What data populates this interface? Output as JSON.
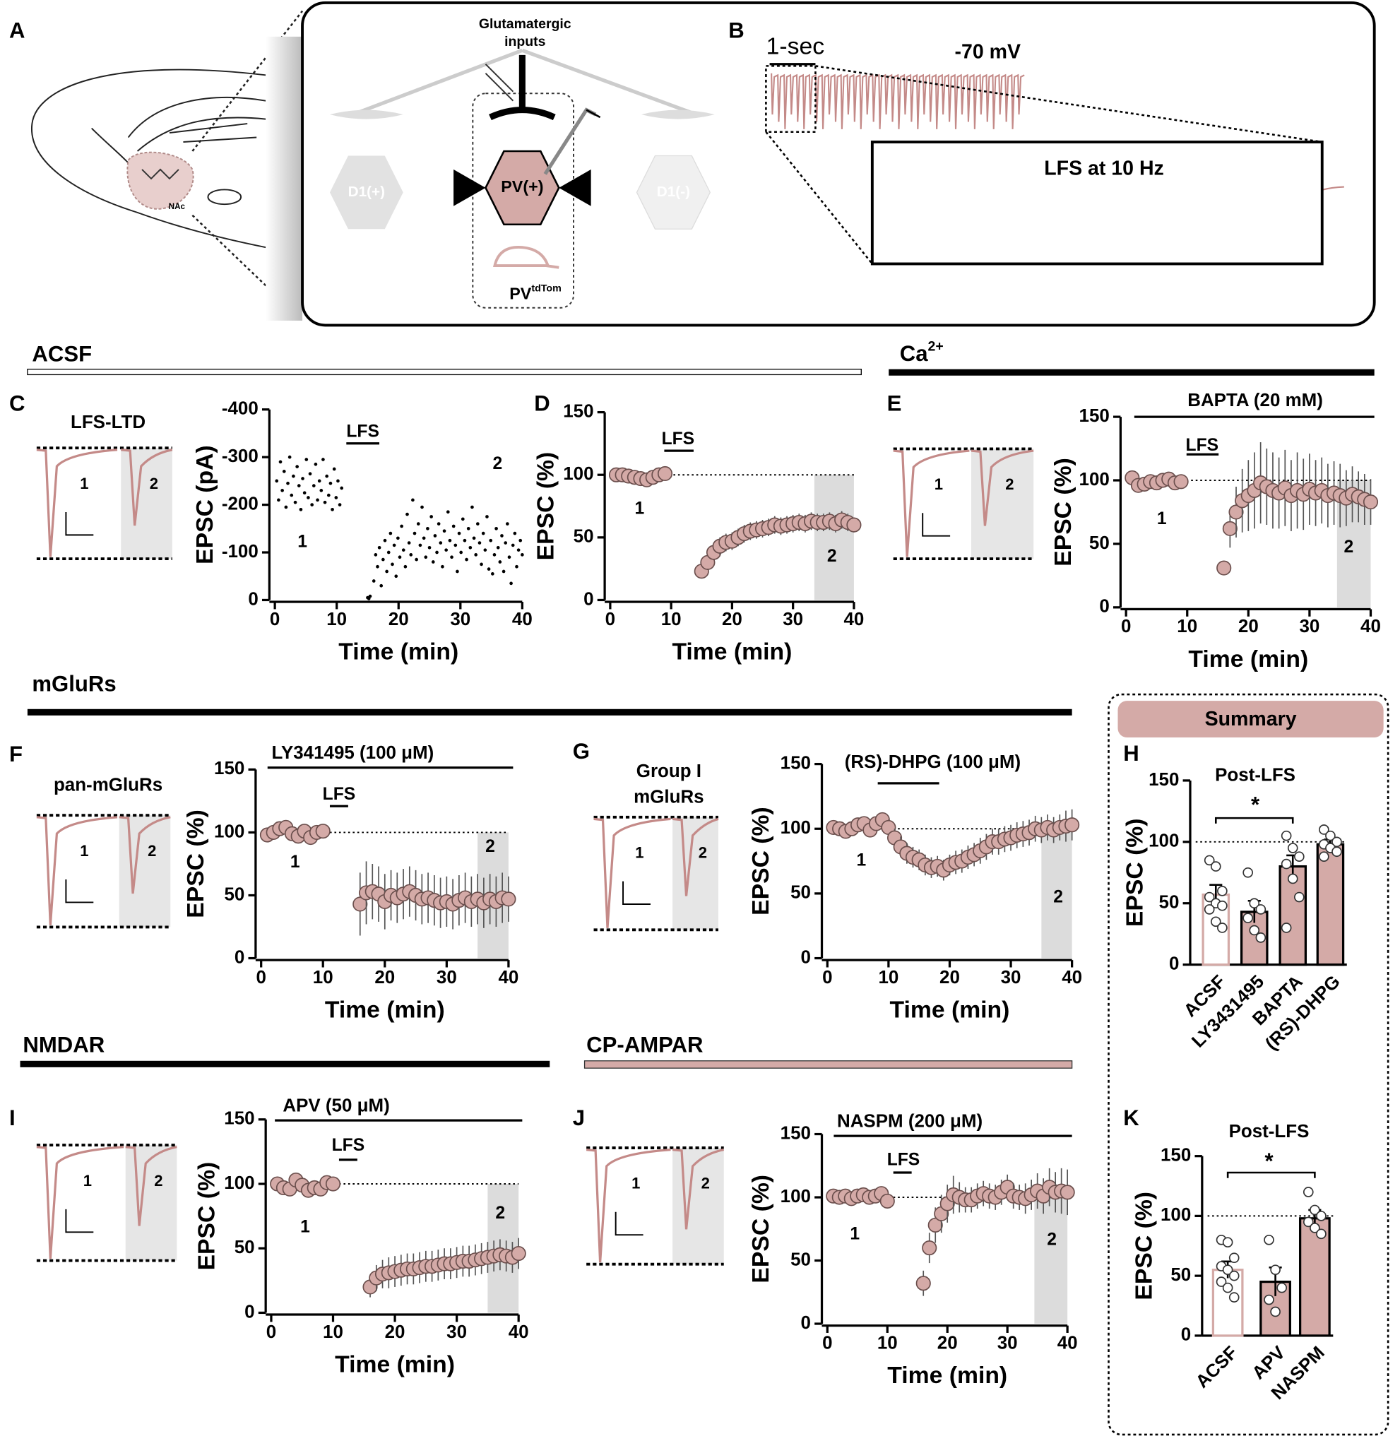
{
  "figure": {
    "panel_labels": [
      "A",
      "B",
      "C",
      "D",
      "E",
      "F",
      "G",
      "H",
      "I",
      "J",
      "K"
    ],
    "sections": [
      {
        "label": "ACSF"
      },
      {
        "label": "Ca",
        "superscript": "2+"
      },
      {
        "label": "mGluRs"
      },
      {
        "label": "NMDAR"
      },
      {
        "label": "CP-AMPAR"
      }
    ],
    "diagram": {
      "inputs": [
        "Glutamatergic",
        "inputs"
      ],
      "cells": [
        "D1(+)",
        "PV(+)",
        "D1(-)"
      ],
      "mouse": "PV",
      "mouse_sup": "tdTom",
      "region": "NAc",
      "time_scale": "1-sec",
      "holding": "-70 mV",
      "inset": "LFS at 10 Hz"
    },
    "trace_labels": [
      "LFS-LTD",
      "pan-mGluRs",
      "Group I",
      "mGluRs"
    ],
    "trace_numbers": [
      "1",
      "2"
    ],
    "summary": "Summary"
  },
  "chart_data": [
    {
      "type": "scatter",
      "xlabel": "Time (min)",
      "ylabel": "EPSC (pA)",
      "color": "#000000",
      "x": [
        0.3,
        0.6,
        0.9,
        1.2,
        1.5,
        1.8,
        2.1,
        2.4,
        2.7,
        3.0,
        3.3,
        3.6,
        3.9,
        4.2,
        4.5,
        4.8,
        5.1,
        5.4,
        5.7,
        6.0,
        6.3,
        6.6,
        6.9,
        7.2,
        7.5,
        7.8,
        8.1,
        8.4,
        8.7,
        9.0,
        9.3,
        9.6,
        9.9,
        10.2,
        10.5,
        10.8,
        15.0,
        15.2,
        15.4,
        16.0,
        16.3,
        16.6,
        16.9,
        17.2,
        17.5,
        17.8,
        18.1,
        18.4,
        18.7,
        19.0,
        19.3,
        19.6,
        19.9,
        20.2,
        20.5,
        20.8,
        21.1,
        21.4,
        21.7,
        22.0,
        22.3,
        22.6,
        22.9,
        23.2,
        23.5,
        23.8,
        24.1,
        24.4,
        24.7,
        25.0,
        25.3,
        25.6,
        25.9,
        26.2,
        26.5,
        26.8,
        27.1,
        27.4,
        27.7,
        28.0,
        28.3,
        28.6,
        28.9,
        29.2,
        29.5,
        29.8,
        30.1,
        30.4,
        30.7,
        31.0,
        31.3,
        31.6,
        31.9,
        32.2,
        32.5,
        32.8,
        33.1,
        33.4,
        33.7,
        34.0,
        34.3,
        34.6,
        34.9,
        35.2,
        35.5,
        35.8,
        36.1,
        36.4,
        36.7,
        37.0,
        37.3,
        37.6,
        37.9,
        38.2,
        38.5,
        38.8,
        39.1,
        39.4,
        39.7,
        40.0
      ],
      "values": [
        -250,
        -210,
        -290,
        -230,
        -270,
        -195,
        -245,
        -300,
        -220,
        -260,
        -205,
        -280,
        -240,
        -190,
        -255,
        -225,
        -295,
        -215,
        -265,
        -200,
        -240,
        -285,
        -210,
        -250,
        -230,
        -295,
        -205,
        -260,
        -220,
        -245,
        -190,
        -275,
        -215,
        -250,
        -200,
        -235,
        -5,
        -3,
        -8,
        -40,
        -95,
        -70,
        -110,
        -30,
        -85,
        -125,
        -60,
        -100,
        -140,
        -75,
        -115,
        -50,
        -130,
        -90,
        -155,
        -105,
        -70,
        -180,
        -120,
        -95,
        -210,
        -140,
        -85,
        -160,
        -115,
        -195,
        -130,
        -90,
        -150,
        -110,
        -175,
        -80,
        -135,
        -100,
        -160,
        -120,
        -70,
        -145,
        -105,
        -185,
        -125,
        -90,
        -155,
        -115,
        -60,
        -140,
        -100,
        -170,
        -125,
        -85,
        -150,
        -110,
        -195,
        -130,
        -95,
        -160,
        -120,
        -75,
        -140,
        -105,
        -175,
        -65,
        -125,
        -55,
        -95,
        -150,
        -110,
        -80,
        -135,
        -60,
        -120,
        -160,
        -90,
        -35,
        -115,
        -140,
        -70,
        -105,
        -125,
        -95
      ],
      "xlim": [
        0,
        40
      ],
      "ylim": [
        0,
        -400
      ],
      "xticks": [
        0,
        10,
        20,
        30,
        40
      ],
      "yticks": [
        -400,
        -300,
        -200,
        -100,
        0
      ],
      "annotations": [
        "LFS",
        "1",
        "2"
      ]
    },
    {
      "type": "scatter",
      "xlabel": "Time (min)",
      "ylabel": "EPSC (%)",
      "color": "#d4aaa7",
      "x": [
        1,
        2,
        3,
        4,
        5,
        6,
        7,
        8,
        9,
        15,
        16,
        17,
        18,
        19,
        20,
        21,
        22,
        23,
        24,
        25,
        26,
        27,
        28,
        29,
        30,
        31,
        32,
        33,
        34,
        35,
        36,
        37,
        38,
        39,
        40
      ],
      "values": [
        100,
        100,
        99,
        98,
        97,
        96,
        98,
        100,
        101,
        23,
        30,
        38,
        43,
        46,
        47,
        50,
        53,
        55,
        56,
        57,
        58,
        60,
        59,
        60,
        61,
        62,
        61,
        63,
        62,
        62,
        63,
        61,
        64,
        62,
        60
      ],
      "errors": [
        3,
        3,
        3,
        3,
        3,
        3,
        3,
        3,
        3,
        5,
        6,
        6,
        7,
        7,
        7,
        7,
        7,
        7,
        7,
        7,
        7,
        7,
        7,
        7,
        7,
        7,
        7,
        7,
        7,
        7,
        7,
        7,
        7,
        7,
        6
      ],
      "xlim": [
        0,
        40
      ],
      "ylim": [
        0,
        150
      ],
      "xticks": [
        0,
        10,
        20,
        30,
        40
      ],
      "yticks": [
        0,
        50,
        100,
        150
      ],
      "reference_y": 100,
      "highlight_x": [
        33.5,
        40
      ],
      "annotations": [
        "LFS",
        "1",
        "2"
      ]
    },
    {
      "type": "scatter",
      "title": "BAPTA (20 mM)",
      "xlabel": "Time (min)",
      "ylabel": "EPSC (%)",
      "color": "#d4aaa7",
      "x": [
        1,
        2,
        3,
        4,
        5,
        6,
        7,
        8,
        9,
        16,
        17,
        18,
        19,
        20,
        21,
        22,
        23,
        24,
        25,
        26,
        27,
        28,
        29,
        30,
        31,
        32,
        33,
        34,
        35,
        36,
        37,
        38,
        39,
        40
      ],
      "values": [
        102,
        96,
        97,
        99,
        98,
        100,
        101,
        98,
        99,
        31,
        62,
        75,
        84,
        88,
        92,
        98,
        95,
        92,
        90,
        94,
        88,
        92,
        89,
        93,
        90,
        92,
        88,
        90,
        88,
        86,
        89,
        87,
        85,
        83
      ],
      "errors": [
        4,
        4,
        4,
        4,
        4,
        4,
        4,
        4,
        4,
        5,
        15,
        20,
        25,
        28,
        30,
        32,
        30,
        30,
        28,
        30,
        28,
        30,
        28,
        28,
        26,
        26,
        25,
        25,
        25,
        22,
        22,
        20,
        20,
        18
      ],
      "xlim": [
        0,
        40
      ],
      "ylim": [
        0,
        150
      ],
      "xticks": [
        0,
        10,
        20,
        30,
        40
      ],
      "yticks": [
        0,
        50,
        100,
        150
      ],
      "reference_y": 100,
      "highlight_x": [
        34.5,
        40
      ],
      "annotations": [
        "LFS",
        "1",
        "2"
      ]
    },
    {
      "type": "scatter",
      "title": "LY341495 (100 μM)",
      "xlabel": "Time (min)",
      "ylabel": "EPSC (%)",
      "color": "#d4aaa7",
      "x": [
        1,
        2,
        3,
        4,
        5,
        6,
        7,
        8,
        9,
        10,
        16,
        17,
        18,
        19,
        20,
        21,
        22,
        23,
        24,
        25,
        26,
        27,
        28,
        29,
        30,
        31,
        32,
        33,
        34,
        35,
        36,
        37,
        38,
        39,
        40
      ],
      "values": [
        98,
        100,
        103,
        104,
        99,
        97,
        101,
        96,
        100,
        101,
        43,
        52,
        53,
        51,
        45,
        50,
        48,
        51,
        53,
        50,
        47,
        48,
        46,
        44,
        45,
        43,
        46,
        48,
        45,
        47,
        44,
        47,
        45,
        48,
        47
      ],
      "errors": [
        4,
        4,
        5,
        5,
        5,
        4,
        5,
        4,
        5,
        5,
        25,
        25,
        22,
        22,
        22,
        20,
        20,
        20,
        20,
        20,
        20,
        20,
        20,
        20,
        20,
        20,
        20,
        20,
        20,
        20,
        20,
        20,
        20,
        20,
        18
      ],
      "xlim": [
        0,
        40
      ],
      "ylim": [
        0,
        150
      ],
      "xticks": [
        0,
        10,
        20,
        30,
        40
      ],
      "yticks": [
        0,
        50,
        100,
        150
      ],
      "reference_y": 100,
      "highlight_x": [
        35,
        40
      ],
      "annotations": [
        "LFS",
        "1",
        "2"
      ]
    },
    {
      "type": "scatter",
      "title": "(RS)-DHPG (100 μM)",
      "xlabel": "Time (min)",
      "ylabel": "EPSC (%)",
      "color": "#d4aaa7",
      "x": [
        1,
        2,
        3,
        4,
        5,
        6,
        7,
        8,
        9,
        10,
        11,
        12,
        13,
        14,
        15,
        16,
        17,
        18,
        19,
        20,
        21,
        22,
        23,
        24,
        25,
        26,
        27,
        28,
        29,
        30,
        31,
        32,
        33,
        34,
        35,
        36,
        37,
        38,
        39,
        40
      ],
      "values": [
        101,
        100,
        98,
        100,
        103,
        104,
        99,
        104,
        107,
        101,
        93,
        86,
        81,
        78,
        76,
        72,
        70,
        71,
        68,
        72,
        74,
        75,
        78,
        80,
        83,
        86,
        90,
        90,
        92,
        93,
        95,
        96,
        97,
        100,
        99,
        101,
        99,
        101,
        102,
        103
      ],
      "errors": [
        4,
        4,
        4,
        4,
        5,
        5,
        5,
        5,
        5,
        6,
        7,
        8,
        8,
        8,
        8,
        8,
        8,
        8,
        8,
        8,
        9,
        9,
        9,
        9,
        10,
        10,
        10,
        10,
        10,
        10,
        10,
        10,
        10,
        10,
        10,
        10,
        10,
        10,
        12,
        12
      ],
      "xlim": [
        0,
        40
      ],
      "ylim": [
        0,
        150
      ],
      "xticks": [
        0,
        10,
        20,
        30,
        40
      ],
      "yticks": [
        0,
        50,
        100,
        150
      ],
      "reference_y": 100,
      "highlight_x": [
        35,
        40
      ],
      "annotations": [
        "1",
        "2"
      ]
    },
    {
      "type": "scatter",
      "title": "APV (50 μM)",
      "xlabel": "Time (min)",
      "ylabel": "EPSC (%)",
      "color": "#d4aaa7",
      "x": [
        1,
        2,
        3,
        4,
        5,
        6,
        7,
        8,
        9,
        10,
        16,
        17,
        18,
        19,
        20,
        21,
        22,
        23,
        24,
        25,
        26,
        27,
        28,
        29,
        30,
        31,
        32,
        33,
        34,
        35,
        36,
        37,
        38,
        39,
        40
      ],
      "values": [
        100,
        97,
        96,
        103,
        99,
        95,
        97,
        96,
        101,
        100,
        20,
        27,
        30,
        31,
        32,
        33,
        34,
        34,
        35,
        36,
        36,
        37,
        38,
        38,
        39,
        40,
        40,
        41,
        42,
        43,
        44,
        45,
        44,
        43,
        46
      ],
      "errors": [
        5,
        5,
        5,
        5,
        5,
        5,
        5,
        5,
        5,
        5,
        8,
        10,
        11,
        12,
        12,
        12,
        12,
        12,
        12,
        12,
        12,
        12,
        12,
        12,
        12,
        12,
        12,
        12,
        12,
        12,
        12,
        12,
        12,
        12,
        12
      ],
      "xlim": [
        0,
        40
      ],
      "ylim": [
        0,
        150
      ],
      "xticks": [
        0,
        10,
        20,
        30,
        40
      ],
      "yticks": [
        0,
        50,
        100,
        150
      ],
      "reference_y": 100,
      "highlight_x": [
        35,
        40
      ],
      "annotations": [
        "LFS",
        "1",
        "2"
      ]
    },
    {
      "type": "scatter",
      "title": "NASPM (200 μM)",
      "xlabel": "Time (min)",
      "ylabel": "EPSC (%)",
      "color": "#d4aaa7",
      "x": [
        1,
        2,
        3,
        4,
        5,
        6,
        7,
        8,
        9,
        10,
        16,
        17,
        18,
        19,
        20,
        21,
        22,
        23,
        24,
        25,
        26,
        27,
        28,
        29,
        30,
        31,
        32,
        33,
        34,
        35,
        36,
        37,
        38,
        39,
        40
      ],
      "values": [
        101,
        100,
        101,
        99,
        101,
        102,
        100,
        101,
        103,
        97,
        32,
        60,
        78,
        87,
        95,
        102,
        100,
        98,
        98,
        101,
        103,
        101,
        100,
        104,
        108,
        101,
        100,
        99,
        102,
        105,
        101,
        108,
        104,
        105,
        104
      ],
      "errors": [
        3,
        3,
        3,
        3,
        3,
        3,
        3,
        3,
        3,
        3,
        10,
        12,
        14,
        15,
        15,
        15,
        12,
        10,
        10,
        10,
        10,
        10,
        10,
        10,
        10,
        10,
        10,
        12,
        12,
        14,
        14,
        15,
        16,
        18,
        18
      ],
      "xlim": [
        0,
        40
      ],
      "ylim": [
        0,
        150
      ],
      "xticks": [
        0,
        10,
        20,
        30,
        40
      ],
      "yticks": [
        0,
        50,
        100,
        150
      ],
      "reference_y": 100,
      "highlight_x": [
        34.5,
        40
      ],
      "annotations": [
        "LFS",
        "1",
        "2"
      ]
    },
    {
      "type": "bar",
      "ylabel": "EPSC (%)",
      "categories": [
        "ACSF",
        "LY3431495",
        "BAPTA",
        "(RS)-DHPG"
      ],
      "values": [
        57,
        43,
        80,
        98
      ],
      "errors": [
        8,
        9,
        9,
        4
      ],
      "points": [
        [
          85,
          80,
          60,
          55,
          50,
          48,
          45,
          35,
          30
        ],
        [
          75,
          50,
          45,
          38,
          28,
          22
        ],
        [
          105,
          95,
          88,
          82,
          70,
          55,
          30
        ],
        [
          110,
          105,
          100,
          98,
          95,
          92,
          88
        ]
      ],
      "bar_colors": [
        "#ffffff",
        "#d4aaa7",
        "#d4aaa7",
        "#d4aaa7"
      ],
      "edge_colors": [
        "#d4aaa7",
        "#000000",
        "#000000",
        "#000000"
      ],
      "ylim": [
        0,
        150
      ],
      "yticks": [
        0,
        50,
        100,
        150
      ],
      "reference_y": 100,
      "annotations": [
        "Post-LFS",
        "*"
      ]
    },
    {
      "type": "bar",
      "ylabel": "EPSC (%)",
      "categories": [
        "ACSF",
        "APV",
        "NASPM"
      ],
      "values": [
        55,
        45,
        98
      ],
      "errors": [
        7,
        12,
        7
      ],
      "points": [
        [
          80,
          78,
          65,
          58,
          55,
          50,
          45,
          40,
          32
        ],
        [
          80,
          55,
          40,
          30,
          20
        ],
        [
          120,
          105,
          100,
          95,
          90,
          85
        ]
      ],
      "bar_colors": [
        "#ffffff",
        "#d4aaa7",
        "#d4aaa7"
      ],
      "edge_colors": [
        "#d4aaa7",
        "#000000",
        "#000000"
      ],
      "ylim": [
        0,
        150
      ],
      "yticks": [
        0,
        50,
        100,
        150
      ],
      "reference_y": 100,
      "annotations": [
        "Post-LFS",
        "*"
      ]
    }
  ]
}
